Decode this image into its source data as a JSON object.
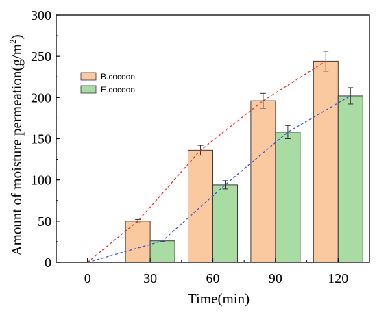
{
  "chart_data": {
    "type": "bar",
    "title": "",
    "xlabel": "Time(min)",
    "ylabel": "Amount of moisture permeation(g/m2)",
    "ylabel_base": "Amount of moisture permeation(g/m",
    "ylabel_sup": "2",
    "ylabel_close": ")",
    "categories": [
      "0",
      "30",
      "60",
      "90",
      "120"
    ],
    "x_ticks": [
      0,
      30,
      60,
      90,
      120
    ],
    "xlim": [
      -15,
      135
    ],
    "ylim": [
      0,
      300
    ],
    "y_ticks": [
      0,
      50,
      100,
      150,
      200,
      250,
      300
    ],
    "grid": false,
    "legend_position": "top-left",
    "series": [
      {
        "name": "B.cocoon",
        "color": "#fbc99f",
        "trend_color": "#e8302c",
        "values": [
          null,
          50,
          136,
          196,
          244
        ],
        "errors": [
          null,
          2,
          6,
          9,
          12
        ],
        "trend": [
          0,
          50,
          136,
          196,
          244
        ]
      },
      {
        "name": "E.cocoon",
        "color": "#a8dca2",
        "trend_color": "#3d55d8",
        "values": [
          null,
          26,
          94,
          158,
          202
        ],
        "errors": [
          null,
          1,
          5,
          8,
          10
        ],
        "trend": [
          0,
          26,
          94,
          158,
          202
        ]
      }
    ]
  }
}
